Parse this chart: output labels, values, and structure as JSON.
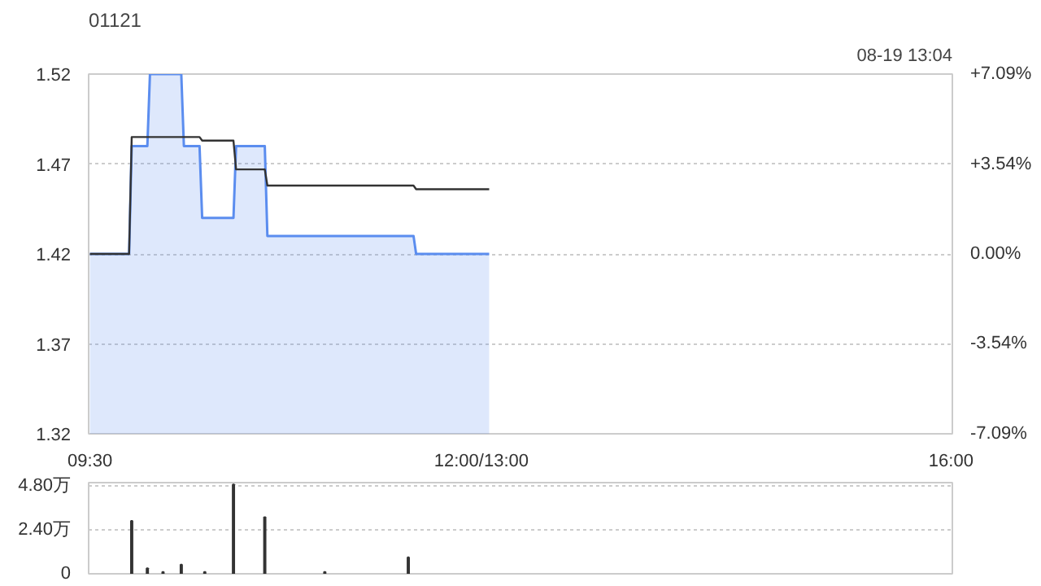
{
  "chart_data": [
    {
      "type": "area",
      "title": "01121",
      "annotations": [
        "08-19 13:04"
      ],
      "categories": [
        "09:30",
        null,
        null,
        null,
        null,
        null,
        null,
        null,
        null,
        null,
        null,
        null,
        null,
        null,
        null,
        null,
        null,
        null,
        null,
        null,
        null,
        null,
        null,
        null,
        null,
        null,
        null,
        null,
        null,
        null,
        null,
        null,
        null,
        null,
        null,
        null,
        null,
        null,
        null,
        null,
        null,
        null,
        null,
        null,
        null,
        null,
        null,
        null,
        null,
        null,
        null,
        null,
        null,
        null,
        null,
        null,
        null,
        null,
        null,
        null,
        null,
        null,
        null,
        null,
        null,
        null,
        null,
        null,
        null,
        null,
        null,
        null,
        null,
        null,
        null,
        null,
        null,
        null,
        null,
        null,
        null,
        null,
        null,
        null,
        null,
        null,
        null,
        null,
        null,
        null,
        null,
        null,
        null,
        null,
        null,
        null,
        null,
        null,
        null,
        null,
        null,
        null,
        null,
        null,
        null,
        null,
        null,
        null,
        null,
        null,
        null,
        null,
        null,
        null,
        null,
        null,
        null,
        null,
        null,
        null,
        null,
        null,
        null,
        null,
        null,
        null,
        null,
        null,
        null,
        null,
        null,
        null,
        null,
        null,
        null,
        null,
        null,
        null,
        null,
        null,
        null,
        null,
        null,
        null,
        null,
        null,
        null,
        null,
        null,
        null,
        "12:00/13:00",
        null,
        null,
        null,
        null,
        null,
        null,
        null,
        null,
        null,
        null,
        null,
        null,
        null,
        null,
        null,
        null,
        null,
        null,
        null,
        null,
        null,
        null,
        null,
        null,
        null,
        null,
        null,
        null,
        null,
        null,
        null,
        null,
        null,
        null,
        null,
        null,
        null,
        null,
        null,
        null,
        null,
        null,
        null,
        null,
        null,
        null,
        null,
        null,
        null,
        null,
        null,
        null,
        null,
        null,
        null,
        null,
        null,
        null,
        null,
        null,
        null,
        null,
        null,
        null,
        null,
        null,
        null,
        null,
        null,
        null,
        null,
        null,
        null,
        null,
        null,
        null,
        null,
        null,
        null,
        null,
        null,
        null,
        null,
        null,
        null,
        null,
        null,
        null,
        null,
        null,
        null,
        null,
        null,
        null,
        null,
        null,
        null,
        null,
        null,
        null,
        null,
        null,
        null,
        null,
        null,
        null,
        null,
        null,
        null,
        null,
        null,
        null,
        null,
        null,
        null,
        null,
        null,
        null,
        null,
        null,
        null,
        null,
        null,
        null,
        null,
        null,
        null,
        null,
        null,
        null,
        null,
        null,
        null,
        null,
        null,
        null,
        null,
        null,
        null,
        null,
        null,
        null,
        null,
        null,
        null,
        null,
        null,
        null,
        null,
        null,
        null,
        null,
        null,
        null,
        null,
        null,
        null,
        null,
        null,
        null,
        null,
        null,
        null,
        null,
        null,
        null,
        null,
        null,
        null,
        null,
        null,
        null,
        null,
        null,
        null,
        null,
        null,
        null,
        null,
        "16:00"
      ],
      "ylim": [
        1.32,
        1.52
      ],
      "yticks": [
        1.32,
        1.37,
        1.42,
        1.47,
        1.52
      ],
      "y2lim": [
        -7.09,
        7.09
      ],
      "y2ticks": [
        {
          "value": -7.09,
          "label": "-7.09%"
        },
        {
          "value": -3.54,
          "label": "-3.54%"
        },
        {
          "value": 0,
          "label": "0.00%"
        },
        {
          "value": 3.54,
          "label": "+3.54%"
        },
        {
          "value": 7.09,
          "label": "+7.09%"
        }
      ],
      "grid": "y",
      "series": [
        {
          "type": "area",
          "color": "#5b8def",
          "values": [
            1.42,
            1.42,
            1.42,
            1.42,
            1.42,
            1.42,
            1.42,
            1.42,
            1.42,
            1.42,
            1.42,
            1.42,
            1.42,
            1.42,
            1.42,
            1.42,
            1.48,
            1.48,
            1.48,
            1.48,
            1.48,
            1.48,
            1.48,
            1.52,
            1.52,
            1.52,
            1.52,
            1.52,
            1.52,
            1.52,
            1.52,
            1.52,
            1.52,
            1.52,
            1.52,
            1.52,
            1.48,
            1.48,
            1.48,
            1.48,
            1.48,
            1.48,
            1.48,
            1.44,
            1.44,
            1.44,
            1.44,
            1.44,
            1.44,
            1.44,
            1.44,
            1.44,
            1.44,
            1.44,
            1.44,
            1.44,
            1.48,
            1.48,
            1.48,
            1.48,
            1.48,
            1.48,
            1.48,
            1.48,
            1.48,
            1.48,
            1.48,
            1.48,
            1.43,
            1.43,
            1.43,
            1.43,
            1.43,
            1.43,
            1.43,
            1.43,
            1.43,
            1.43,
            1.43,
            1.43,
            1.43,
            1.43,
            1.43,
            1.43,
            1.43,
            1.43,
            1.43,
            1.43,
            1.43,
            1.43,
            1.43,
            1.43,
            1.43,
            1.43,
            1.43,
            1.43,
            1.43,
            1.43,
            1.43,
            1.43,
            1.43,
            1.43,
            1.43,
            1.43,
            1.43,
            1.43,
            1.43,
            1.43,
            1.43,
            1.43,
            1.43,
            1.43,
            1.43,
            1.43,
            1.43,
            1.43,
            1.43,
            1.43,
            1.43,
            1.43,
            1.43,
            1.43,
            1.43,
            1.43,
            1.43,
            1.42,
            1.42,
            1.42,
            1.42,
            1.42,
            1.42,
            1.42,
            1.42,
            1.42,
            1.42,
            1.42,
            1.42,
            1.42,
            1.42,
            1.42,
            1.42,
            1.42,
            1.42,
            1.42,
            1.42,
            1.42,
            1.42,
            1.42,
            1.42,
            1.42,
            1.42,
            1.42,
            1.42,
            1.42,
            null,
            null,
            null,
            null,
            null,
            null,
            null,
            null,
            null,
            null,
            null,
            null,
            null,
            null,
            null,
            null,
            null,
            null,
            null,
            null,
            null,
            null,
            null,
            null,
            null,
            null,
            null,
            null,
            null,
            null,
            null,
            null,
            null,
            null,
            null,
            null,
            null,
            null,
            null,
            null,
            null,
            null,
            null,
            null,
            null,
            null,
            null,
            null,
            null,
            null,
            null,
            null,
            null,
            null,
            null,
            null,
            null,
            null,
            null,
            null,
            null,
            null,
            null,
            null,
            null,
            null,
            null,
            null,
            null,
            null,
            null,
            null,
            null,
            null,
            null,
            null,
            null,
            null,
            null,
            null,
            null,
            null,
            null,
            null,
            null,
            null,
            null,
            null,
            null,
            null,
            null,
            null,
            null,
            null,
            null,
            null,
            null,
            null,
            null,
            null,
            null,
            null,
            null,
            null,
            null,
            null,
            null,
            null,
            null,
            null,
            null,
            null,
            null,
            null,
            null,
            null,
            null,
            null,
            null,
            null,
            null,
            null,
            null,
            null,
            null,
            null,
            null,
            null,
            null,
            null,
            null,
            null,
            null,
            null,
            null,
            null,
            null,
            null,
            null,
            null,
            null,
            null,
            null,
            null,
            null,
            null,
            null,
            null,
            null,
            null,
            null,
            null,
            null,
            null,
            null,
            null,
            null,
            null,
            null,
            null,
            null,
            null,
            null,
            null,
            null,
            null,
            null,
            null,
            null,
            null,
            null,
            null,
            null,
            null,
            null,
            null,
            null
          ]
        },
        {
          "type": "line",
          "color": "#333333",
          "values": [
            1.42,
            1.42,
            1.42,
            1.42,
            1.42,
            1.42,
            1.42,
            1.42,
            1.42,
            1.42,
            1.42,
            1.42,
            1.42,
            1.42,
            1.42,
            1.42,
            1.485,
            1.485,
            1.485,
            1.485,
            1.485,
            1.485,
            1.485,
            1.485,
            1.485,
            1.485,
            1.485,
            1.485,
            1.485,
            1.485,
            1.485,
            1.485,
            1.485,
            1.485,
            1.485,
            1.485,
            1.485,
            1.485,
            1.485,
            1.485,
            1.485,
            1.485,
            1.485,
            1.483,
            1.483,
            1.483,
            1.483,
            1.483,
            1.483,
            1.483,
            1.483,
            1.483,
            1.483,
            1.483,
            1.483,
            1.483,
            1.467,
            1.467,
            1.467,
            1.467,
            1.467,
            1.467,
            1.467,
            1.467,
            1.467,
            1.467,
            1.467,
            1.467,
            1.458,
            1.458,
            1.458,
            1.458,
            1.458,
            1.458,
            1.458,
            1.458,
            1.458,
            1.458,
            1.458,
            1.458,
            1.458,
            1.458,
            1.458,
            1.458,
            1.458,
            1.458,
            1.458,
            1.458,
            1.458,
            1.458,
            1.458,
            1.458,
            1.458,
            1.458,
            1.458,
            1.458,
            1.458,
            1.458,
            1.458,
            1.458,
            1.458,
            1.458,
            1.458,
            1.458,
            1.458,
            1.458,
            1.458,
            1.458,
            1.458,
            1.458,
            1.458,
            1.458,
            1.458,
            1.458,
            1.458,
            1.458,
            1.458,
            1.458,
            1.458,
            1.458,
            1.458,
            1.458,
            1.458,
            1.458,
            1.458,
            1.456,
            1.456,
            1.456,
            1.456,
            1.456,
            1.456,
            1.456,
            1.456,
            1.456,
            1.456,
            1.456,
            1.456,
            1.456,
            1.456,
            1.456,
            1.456,
            1.456,
            1.456,
            1.456,
            1.456,
            1.456,
            1.456,
            1.456,
            1.456,
            1.456,
            1.456,
            1.456,
            1.456,
            1.456,
            null,
            null,
            null,
            null,
            null,
            null,
            null,
            null,
            null,
            null,
            null,
            null,
            null,
            null,
            null,
            null,
            null,
            null,
            null,
            null,
            null,
            null,
            null,
            null,
            null,
            null,
            null,
            null,
            null,
            null,
            null,
            null,
            null,
            null,
            null,
            null,
            null,
            null,
            null,
            null,
            null,
            null,
            null,
            null,
            null,
            null,
            null,
            null,
            null,
            null,
            null,
            null,
            null,
            null,
            null,
            null,
            null,
            null,
            null,
            null,
            null,
            null,
            null,
            null,
            null,
            null,
            null,
            null,
            null,
            null,
            null,
            null,
            null,
            null,
            null,
            null,
            null,
            null,
            null,
            null,
            null,
            null,
            null,
            null,
            null,
            null,
            null,
            null,
            null,
            null,
            null,
            null,
            null,
            null,
            null,
            null,
            null,
            null,
            null,
            null,
            null,
            null,
            null,
            null,
            null,
            null,
            null,
            null,
            null,
            null,
            null,
            null,
            null,
            null,
            null,
            null,
            null,
            null,
            null,
            null,
            null,
            null,
            null,
            null,
            null,
            null,
            null,
            null,
            null,
            null,
            null,
            null,
            null,
            null,
            null,
            null,
            null,
            null,
            null,
            null,
            null,
            null,
            null,
            null,
            null,
            null,
            null,
            null,
            null,
            null,
            null,
            null,
            null,
            null,
            null,
            null,
            null,
            null,
            null,
            null,
            null,
            null,
            null,
            null,
            null,
            null,
            null,
            null,
            null,
            null,
            null,
            null,
            null,
            null,
            null,
            null,
            null
          ]
        }
      ]
    },
    {
      "type": "bar",
      "categories": [
        null,
        null,
        null,
        null,
        null,
        null,
        null,
        null,
        null,
        null,
        null,
        null,
        null,
        null,
        null,
        null,
        null,
        null,
        null,
        null,
        null,
        null,
        null,
        null,
        null,
        null,
        null,
        null,
        null,
        null,
        null,
        null,
        null,
        null,
        null,
        null,
        null,
        null,
        null,
        null,
        null,
        null,
        null,
        null,
        null,
        null,
        null,
        null,
        null,
        null,
        null,
        null,
        null,
        null,
        null,
        null,
        null,
        null,
        null,
        null,
        null,
        null,
        null,
        null,
        null,
        null,
        null,
        null,
        null,
        null,
        null,
        null,
        null,
        null,
        null,
        null,
        null,
        null,
        null,
        null,
        null,
        null,
        null,
        null,
        null,
        null,
        null,
        null,
        null,
        null,
        null,
        null,
        null,
        null,
        null,
        null,
        null,
        null,
        null,
        null,
        null,
        null,
        null,
        null,
        null,
        null,
        null,
        null,
        null,
        null,
        null,
        null,
        null,
        null,
        null,
        null,
        null,
        null,
        null,
        null,
        null,
        null,
        null,
        null,
        null,
        null,
        null,
        null,
        null,
        null,
        null,
        null,
        null,
        null,
        null,
        null,
        null,
        null,
        null,
        null,
        null,
        null,
        null,
        null,
        null,
        null,
        null,
        null,
        null,
        null,
        null,
        null,
        null,
        null,
        null,
        null,
        null,
        null,
        null,
        null,
        null,
        null,
        null,
        null,
        null,
        null,
        null,
        null,
        null,
        null,
        null,
        null,
        null,
        null,
        null,
        null,
        null,
        null,
        null,
        null,
        null,
        null,
        null,
        null,
        null,
        null,
        null,
        null,
        null,
        null,
        null,
        null,
        null,
        null,
        null,
        null,
        null,
        null,
        null,
        null,
        null,
        null,
        null,
        null,
        null,
        null,
        null,
        null,
        null,
        null,
        null,
        null,
        null,
        null,
        null,
        null,
        null,
        null,
        null,
        null,
        null,
        null,
        null,
        null,
        null,
        null,
        null,
        null,
        null,
        null,
        null,
        null,
        null,
        null,
        null,
        null,
        null,
        null,
        null,
        null,
        null,
        null,
        null,
        null,
        null,
        null,
        null,
        null,
        null,
        null,
        null,
        null,
        null,
        null,
        null,
        null,
        null,
        null,
        null,
        null,
        null,
        null,
        null,
        null,
        null,
        null,
        null,
        null,
        null,
        null,
        null,
        null,
        null,
        null,
        null,
        null,
        null,
        null,
        null,
        null,
        null,
        null,
        null,
        null,
        null,
        null,
        null,
        null,
        null,
        null,
        null,
        null,
        null,
        null,
        null,
        null,
        null,
        null,
        null,
        null,
        null,
        null,
        null,
        null,
        null,
        null,
        null,
        null,
        null,
        null,
        null,
        null,
        null,
        null,
        null,
        null,
        null,
        null,
        null,
        null,
        null,
        null,
        null,
        null,
        null,
        null,
        null,
        null,
        null,
        null,
        null
      ],
      "ylim": [
        0,
        5.0
      ],
      "yticks": [
        {
          "value": 0,
          "label": "0"
        },
        {
          "value": 2.4,
          "label": "2.40万"
        },
        {
          "value": 4.8,
          "label": "4.80万"
        }
      ],
      "grid": "y",
      "series": [
        {
          "color": "#333333",
          "values": [
            null,
            null,
            null,
            null,
            null,
            null,
            null,
            null,
            null,
            null,
            null,
            null,
            null,
            null,
            null,
            null,
            2.9,
            null,
            null,
            null,
            null,
            null,
            0.3,
            null,
            null,
            null,
            null,
            null,
            0.1,
            null,
            null,
            null,
            null,
            null,
            null,
            0.5,
            null,
            null,
            null,
            null,
            null,
            null,
            null,
            null,
            0.1,
            null,
            null,
            null,
            null,
            null,
            null,
            null,
            null,
            null,
            null,
            4.9,
            null,
            null,
            null,
            null,
            null,
            null,
            null,
            null,
            null,
            null,
            null,
            3.1,
            null,
            null,
            null,
            null,
            null,
            null,
            null,
            null,
            null,
            null,
            null,
            null,
            null,
            null,
            null,
            null,
            null,
            null,
            null,
            null,
            null,
            null,
            0.1,
            null,
            null,
            null,
            null,
            null,
            null,
            null,
            null,
            null,
            null,
            null,
            null,
            null,
            null,
            null,
            null,
            null,
            null,
            null,
            null,
            null,
            null,
            null,
            null,
            null,
            null,
            null,
            null,
            null,
            null,
            null,
            0.9,
            null,
            null,
            null,
            null,
            null,
            null,
            null,
            null,
            null,
            null,
            null,
            null,
            null,
            null,
            null,
            null,
            null,
            null,
            null,
            null,
            null,
            null,
            null,
            null,
            null,
            null,
            null,
            null,
            null,
            null,
            null,
            null,
            null,
            null,
            null,
            null,
            null,
            null,
            null,
            null,
            null,
            null,
            null,
            null,
            null,
            null,
            null,
            null,
            null,
            null,
            null,
            null,
            null,
            null,
            null,
            null,
            null,
            null,
            null,
            null,
            null,
            null,
            null,
            null,
            null,
            null,
            null,
            null,
            null,
            null,
            null,
            null,
            null,
            null,
            null,
            null,
            null,
            null,
            null,
            null,
            null,
            null,
            null,
            null,
            null,
            null,
            null,
            null,
            null,
            null,
            null,
            null,
            null,
            null,
            null,
            null,
            null,
            null,
            null,
            null,
            null,
            null,
            null,
            null,
            null,
            null,
            null,
            null,
            null,
            null,
            null,
            null,
            null,
            null,
            null,
            null,
            null,
            null,
            null,
            null,
            null,
            null,
            null,
            null,
            null,
            null,
            null,
            null,
            null,
            null,
            null,
            null,
            null,
            null,
            null,
            null,
            null,
            null,
            null,
            null,
            null,
            null,
            null,
            null,
            null,
            null,
            null,
            null,
            null,
            null,
            null,
            null,
            null,
            null,
            null,
            null,
            null,
            null,
            null,
            null,
            null,
            null,
            null,
            null,
            null,
            null,
            null,
            null,
            null,
            null,
            null,
            null,
            null,
            null,
            null,
            null,
            null,
            null,
            null,
            null,
            null,
            null,
            null,
            null,
            null,
            null,
            null,
            null,
            null,
            null,
            null,
            null,
            null,
            null,
            null,
            null,
            null,
            null,
            null,
            null,
            null,
            null,
            null,
            null,
            null,
            null,
            null,
            null
          ]
        }
      ]
    }
  ]
}
